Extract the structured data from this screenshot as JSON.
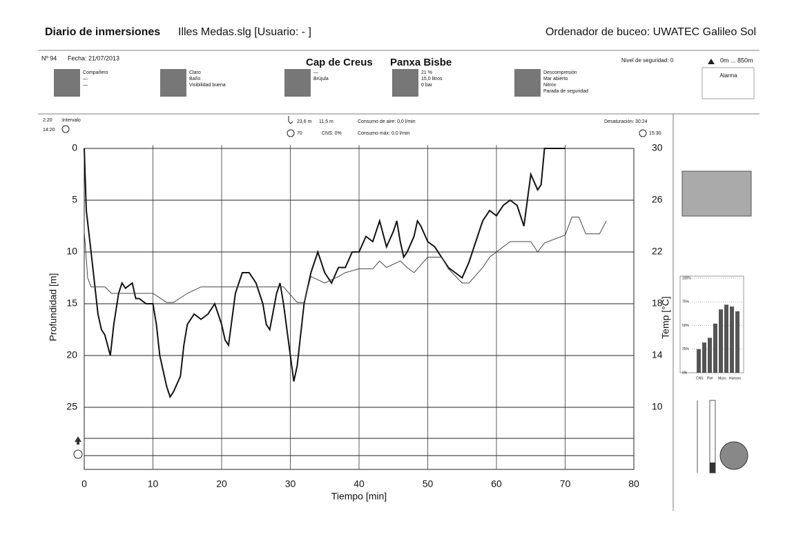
{
  "header": {
    "title_bold": "Diario de inmersiones",
    "title_file": "Illes Medas.slg  [Usuario:  - ]",
    "computer": "Ordenador de buceo: UWATEC Galileo Sol"
  },
  "dive": {
    "number": "Nº 94",
    "date": "Fecha: 21/07/2013",
    "site_1": "Cap de Creus",
    "site_2": "Panxa Bisbe",
    "safety": "Nivel de seguridad: 0",
    "altitude": "0m ... 850m",
    "info_groups": [
      [
        "Compañero",
        "—",
        "—"
      ],
      [
        "Claro",
        "Baño",
        "Visibilidad buena"
      ],
      [
        "—",
        "Brújula"
      ],
      [
        "21 %",
        "15,0 litros",
        "0 bar"
      ],
      [
        "Descompresión",
        "Mar abierto",
        "Nitrox",
        "Parada de seguridad"
      ]
    ],
    "alarm": "Alarma"
  },
  "stats": {
    "interval": "2:20",
    "interval_label": ":Intervalo",
    "start": "14:20",
    "max_depth": "23,6 m",
    "avg_depth": "11,5 m",
    "air": "Consumo de aire: 0,0 l/min",
    "dive_time": "70",
    "cns": "CNS: 0%",
    "air_max": "Consumo máx: 0,0 l/min",
    "desat": "Desaturación:",
    "desat_time": "30:24",
    "end": "15:30"
  },
  "chart_data": [
    {
      "type": "line",
      "xlabel": "Tiempo [min]",
      "ylabel": "Profundidad [m]",
      "y2label": "Temp [°C]",
      "xlim": [
        0,
        80
      ],
      "xticks": [
        0,
        10,
        20,
        30,
        40,
        50,
        60,
        70,
        80
      ],
      "ylim": [
        31,
        0
      ],
      "yticks": [
        0,
        5,
        10,
        15,
        20,
        25
      ],
      "y2lim": [
        5.2,
        30
      ],
      "y2ticks": [
        10,
        14,
        18,
        22,
        26,
        30
      ],
      "grid": true,
      "series": [
        {
          "color": "#111111",
          "x": [
            0,
            0.3,
            1,
            1.5,
            2,
            2.5,
            3,
            3.8,
            4.3,
            5,
            5.5,
            6,
            7,
            7.5,
            8,
            9,
            10,
            10.5,
            11,
            12,
            12.5,
            13,
            14,
            14.5,
            15,
            16,
            17,
            18,
            19,
            20,
            20.5,
            21,
            22,
            23,
            24,
            25,
            26,
            26.5,
            27,
            28,
            28.5,
            29,
            30,
            30.5,
            31,
            32,
            33,
            34,
            35,
            36,
            37,
            38,
            39,
            40,
            41,
            42,
            43,
            44,
            45,
            45.5,
            46,
            46.5,
            47,
            48,
            48.5,
            49,
            50,
            51,
            52,
            53,
            54,
            55,
            56,
            57,
            58,
            59,
            60,
            61,
            62,
            63,
            64,
            65,
            66,
            66.5,
            67,
            70
          ],
          "values": [
            0,
            6,
            10,
            13,
            16,
            17.5,
            18,
            20,
            17,
            14,
            13,
            13.5,
            13,
            14.5,
            14.5,
            15,
            15,
            17,
            20,
            23,
            24,
            23.5,
            22,
            19,
            17,
            16,
            16.5,
            16,
            15,
            17,
            18.5,
            19,
            14,
            12,
            12,
            13,
            15,
            17,
            17.5,
            14,
            13,
            15,
            20,
            22.5,
            21,
            15,
            12,
            10,
            12,
            13,
            11.5,
            11.5,
            10,
            10,
            8.5,
            9,
            7,
            9.5,
            8,
            7,
            9,
            10.5,
            10,
            8.5,
            7,
            7.5,
            9,
            9.5,
            10.5,
            11.5,
            12,
            12.5,
            11,
            9,
            7,
            6,
            6.5,
            5.5,
            5,
            5.5,
            7.5,
            2.5,
            4,
            3.5,
            0,
            0
          ]
        },
        {
          "color": "#444444",
          "axis": "y2",
          "x": [
            0,
            0.5,
            1,
            3,
            4,
            10,
            12,
            13,
            15,
            17,
            29,
            31,
            32,
            33,
            35,
            37,
            38,
            40,
            42,
            43,
            44,
            46,
            47,
            48,
            50,
            52,
            53,
            55,
            56,
            58,
            59,
            62,
            65,
            66,
            67,
            70,
            71,
            72,
            73,
            75,
            76
          ],
          "values": [
            23.6,
            20,
            19.3,
            19.3,
            18.8,
            18.8,
            18.1,
            18.1,
            18.8,
            19.3,
            19.3,
            18.1,
            18.1,
            20.1,
            19.6,
            20.1,
            20.4,
            20.7,
            20.7,
            21.3,
            20.8,
            21.3,
            20.8,
            20.4,
            21.6,
            21.6,
            20.7,
            19.6,
            19.6,
            20.8,
            21.6,
            22.8,
            22.8,
            22,
            22.7,
            23.3,
            24.7,
            24.7,
            23.4,
            23.4,
            24.4
          ]
        }
      ]
    },
    {
      "type": "bar",
      "categories": [
        "CNS",
        null,
        "Piel",
        null,
        "Músc",
        null,
        "Huesos",
        null
      ],
      "values": [
        25,
        32,
        37,
        52,
        67,
        72,
        70,
        65
      ],
      "color": "#555555",
      "ylim": [
        0,
        100
      ],
      "yticks": [
        {
          "value": 0,
          "label": "0%"
        },
        {
          "value": 25,
          "label": "25%"
        },
        {
          "value": 50,
          "label": "50%"
        },
        {
          "value": 75,
          "label": "75%"
        },
        {
          "value": 100,
          "label": "100%"
        }
      ]
    }
  ]
}
